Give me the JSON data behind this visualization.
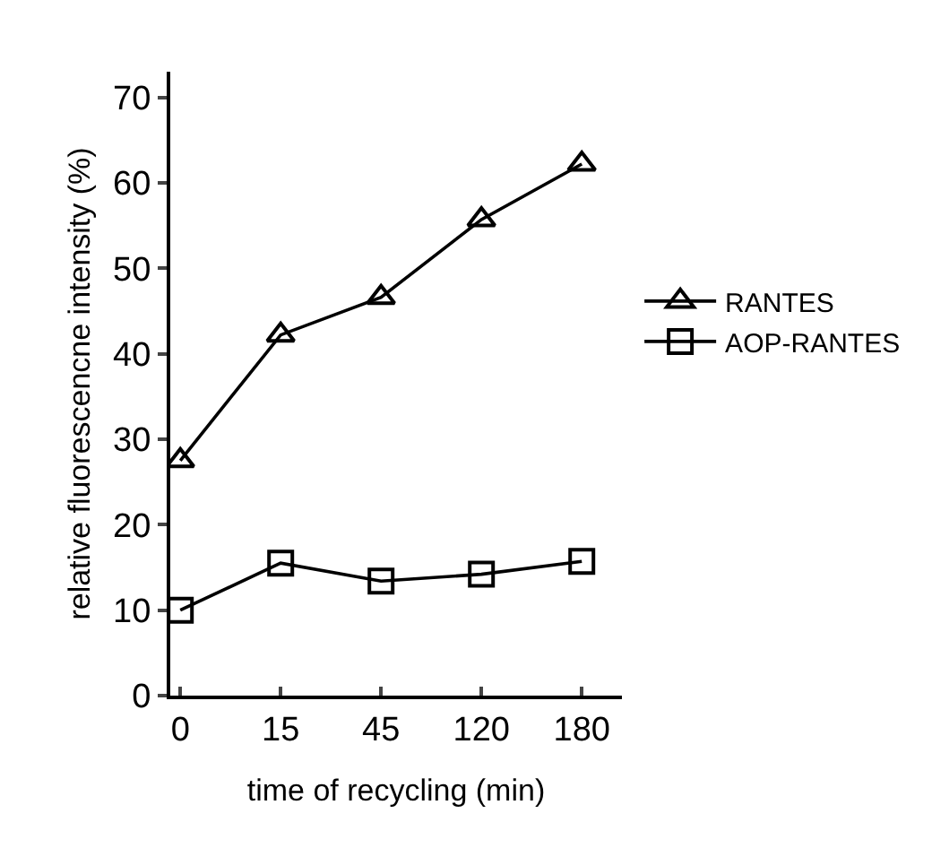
{
  "chart_data": {
    "type": "line",
    "xlabel": "time of recycling (min)",
    "ylabel": "relative fluorescencne intensity (%)",
    "categories": [
      "0",
      "15",
      "45",
      "120",
      "180"
    ],
    "series": [
      {
        "name": "RANTES",
        "color": "#000000",
        "marker": "triangle",
        "values": [
          27.5,
          42.2,
          46.6,
          55.7,
          62.2
        ]
      },
      {
        "name": "AOP-RANTES",
        "color": "#000000",
        "marker": "square",
        "values": [
          10,
          15.5,
          13.4,
          14.2,
          15.7
        ]
      }
    ],
    "ylim": [
      0,
      73
    ],
    "yticks": [
      0,
      10,
      20,
      30,
      40,
      50,
      60,
      70
    ],
    "legend": "right",
    "line_style": "solid"
  }
}
